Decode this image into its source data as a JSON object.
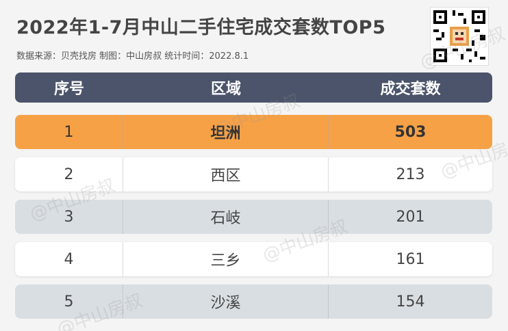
{
  "title": "2022年1-7月中山二手住宅成交套数TOP5",
  "subtitle": "数据来源：贝壳找房  制图：中山房叔  统计时间：2022.8.1",
  "watermark": "@中山房叔",
  "colors": {
    "header": "#4b546a",
    "highlight": "#f7a146",
    "row_gray": "#d9dee3",
    "row_white": "#ffffff"
  },
  "chart_data": {
    "type": "table",
    "title": "2022年1-7月中山二手住宅成交套数TOP5",
    "columns": [
      "序号",
      "区域",
      "成交套数"
    ],
    "rows": [
      {
        "rank": "1",
        "district": "坦洲",
        "count": "503"
      },
      {
        "rank": "2",
        "district": "西区",
        "count": "213"
      },
      {
        "rank": "3",
        "district": "石岐",
        "count": "201"
      },
      {
        "rank": "4",
        "district": "三乡",
        "count": "161"
      },
      {
        "rank": "5",
        "district": "沙溪",
        "count": "154"
      }
    ]
  }
}
